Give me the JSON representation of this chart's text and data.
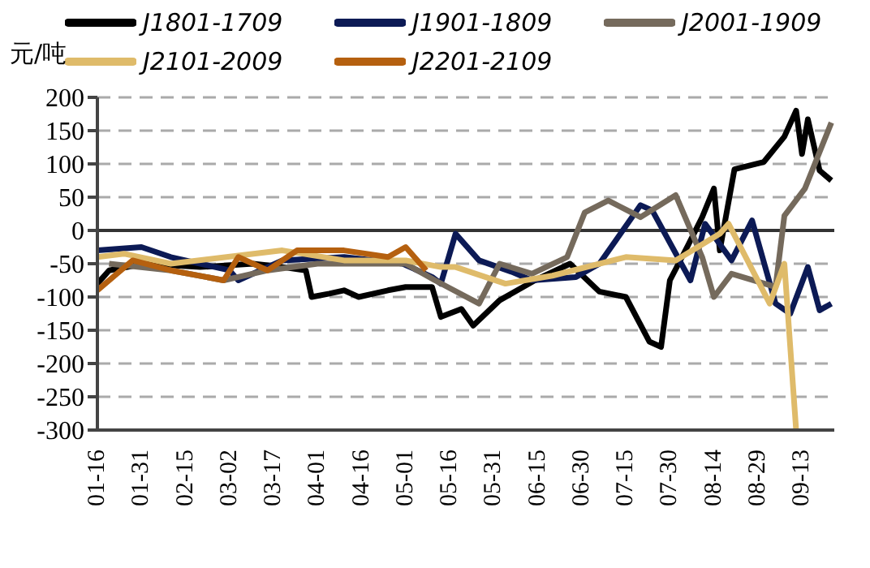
{
  "chart_data": {
    "type": "line",
    "ylabel": "元/吨",
    "xlim": [
      "--01-16",
      "--09-24"
    ],
    "ylim": [
      -300,
      200
    ],
    "yticks": [
      -300,
      -250,
      -200,
      -150,
      -100,
      -50,
      0,
      50,
      100,
      150,
      200
    ],
    "xticks": [
      {
        "value": "--01-16",
        "label": "01-16"
      },
      {
        "value": "--01-31",
        "label": "01-31"
      },
      {
        "value": "--02-15",
        "label": "02-15"
      },
      {
        "value": "--03-02",
        "label": "03-02"
      },
      {
        "value": "--03-17",
        "label": "03-17"
      },
      {
        "value": "--04-01",
        "label": "04-01"
      },
      {
        "value": "--04-16",
        "label": "04-16"
      },
      {
        "value": "--05-01",
        "label": "05-01"
      },
      {
        "value": "--05-16",
        "label": "05-16"
      },
      {
        "value": "--05-31",
        "label": "05-31"
      },
      {
        "value": "--06-15",
        "label": "06-15"
      },
      {
        "value": "--06-30",
        "label": "06-30"
      },
      {
        "value": "--07-15",
        "label": "07-15"
      },
      {
        "value": "--07-30",
        "label": "07-30"
      },
      {
        "value": "--08-14",
        "label": "08-14"
      },
      {
        "value": "--08-29",
        "label": "08-29"
      },
      {
        "value": "--09-13",
        "label": "09-13"
      }
    ],
    "grid": "y",
    "legend": "top",
    "line_style": "solid",
    "marker": "none",
    "series": [
      {
        "name": "J1801-1709",
        "color": "#000000",
        "x": [
          "--01-16",
          "--01-20",
          "--02-01",
          "--02-20",
          "--03-10",
          "--03-20",
          "--03-28",
          "--03-30",
          "--04-05",
          "--04-10",
          "--04-15",
          "--04-25",
          "--05-01",
          "--05-10",
          "--05-13",
          "--05-20",
          "--05-24",
          "--06-02",
          "--06-14",
          "--06-26",
          "--07-06",
          "--07-15",
          "--07-23",
          "--07-27",
          "--07-30",
          "--08-05",
          "--08-10",
          "--08-14",
          "--08-16",
          "--08-21",
          "--08-31",
          "--09-07",
          "--09-11",
          "--09-13",
          "--09-15",
          "--09-19",
          "--09-23"
        ],
        "values": [
          -80,
          -60,
          -50,
          -55,
          -50,
          -55,
          -60,
          -100,
          -95,
          -90,
          -100,
          -90,
          -85,
          -85,
          -130,
          -118,
          -143,
          -105,
          -75,
          -50,
          -92,
          -100,
          -167,
          -175,
          -75,
          -24,
          20,
          63,
          -30,
          92,
          103,
          141,
          180,
          115,
          167,
          90,
          75
        ]
      },
      {
        "name": "J1901-1809",
        "color": "#0c1a55",
        "x": [
          "--01-16",
          "--01-31",
          "--02-10",
          "--03-02",
          "--03-05",
          "--03-20",
          "--04-10",
          "--04-30",
          "--05-10",
          "--05-13",
          "--05-18",
          "--05-26",
          "--06-06",
          "--06-13",
          "--06-28",
          "--07-06",
          "--07-20",
          "--07-24",
          "--08-06",
          "--08-11",
          "--08-20",
          "--08-27",
          "--09-04",
          "--09-09",
          "--09-15",
          "--09-19",
          "--09-23"
        ],
        "values": [
          -30,
          -25,
          -40,
          -60,
          -75,
          -45,
          -40,
          -50,
          -70,
          -80,
          -5,
          -45,
          -62,
          -75,
          -70,
          -50,
          38,
          30,
          -75,
          10,
          -45,
          15,
          -110,
          -125,
          -55,
          -120,
          -110
        ]
      },
      {
        "name": "J2001-1909",
        "color": "#756a5c",
        "x": [
          "--01-20",
          "--02-10",
          "--02-28",
          "--03-15",
          "--04-01",
          "--05-01",
          "--05-11",
          "--05-26",
          "--06-02",
          "--06-13",
          "--06-25",
          "--07-01",
          "--07-09",
          "--07-20",
          "--08-01",
          "--08-10",
          "--08-14",
          "--08-20",
          "--09-04",
          "--09-07",
          "--09-14",
          "--09-23"
        ],
        "values": [
          -50,
          -60,
          -75,
          -60,
          -50,
          -50,
          -75,
          -110,
          -50,
          -65,
          -40,
          27,
          45,
          20,
          53,
          -40,
          -100,
          -65,
          -85,
          22,
          63,
          162
        ]
      },
      {
        "name": "J2101-2009",
        "color": "#dfbb6a",
        "x": [
          "--01-16",
          "--01-25",
          "--02-10",
          "--03-01",
          "--03-20",
          "--04-10",
          "--05-01",
          "--05-13",
          "--05-18",
          "--06-04",
          "--06-20",
          "--07-15",
          "--08-01",
          "--08-16",
          "--08-19",
          "--09-02",
          "--09-07",
          "--09-11"
        ],
        "values": [
          -40,
          -35,
          -50,
          -40,
          -30,
          -45,
          -45,
          -55,
          -55,
          -80,
          -68,
          -40,
          -45,
          -5,
          10,
          -110,
          -50,
          -300
        ]
      },
      {
        "name": "J2201-2109",
        "color": "#b5600f",
        "x": [
          "--01-16",
          "--01-28",
          "--02-10",
          "--02-28",
          "--03-05",
          "--03-15",
          "--03-25",
          "--04-10",
          "--04-25",
          "--05-01",
          "--05-08"
        ],
        "values": [
          -90,
          -45,
          -60,
          -75,
          -40,
          -60,
          -30,
          -30,
          -40,
          -25,
          -60
        ]
      }
    ]
  }
}
